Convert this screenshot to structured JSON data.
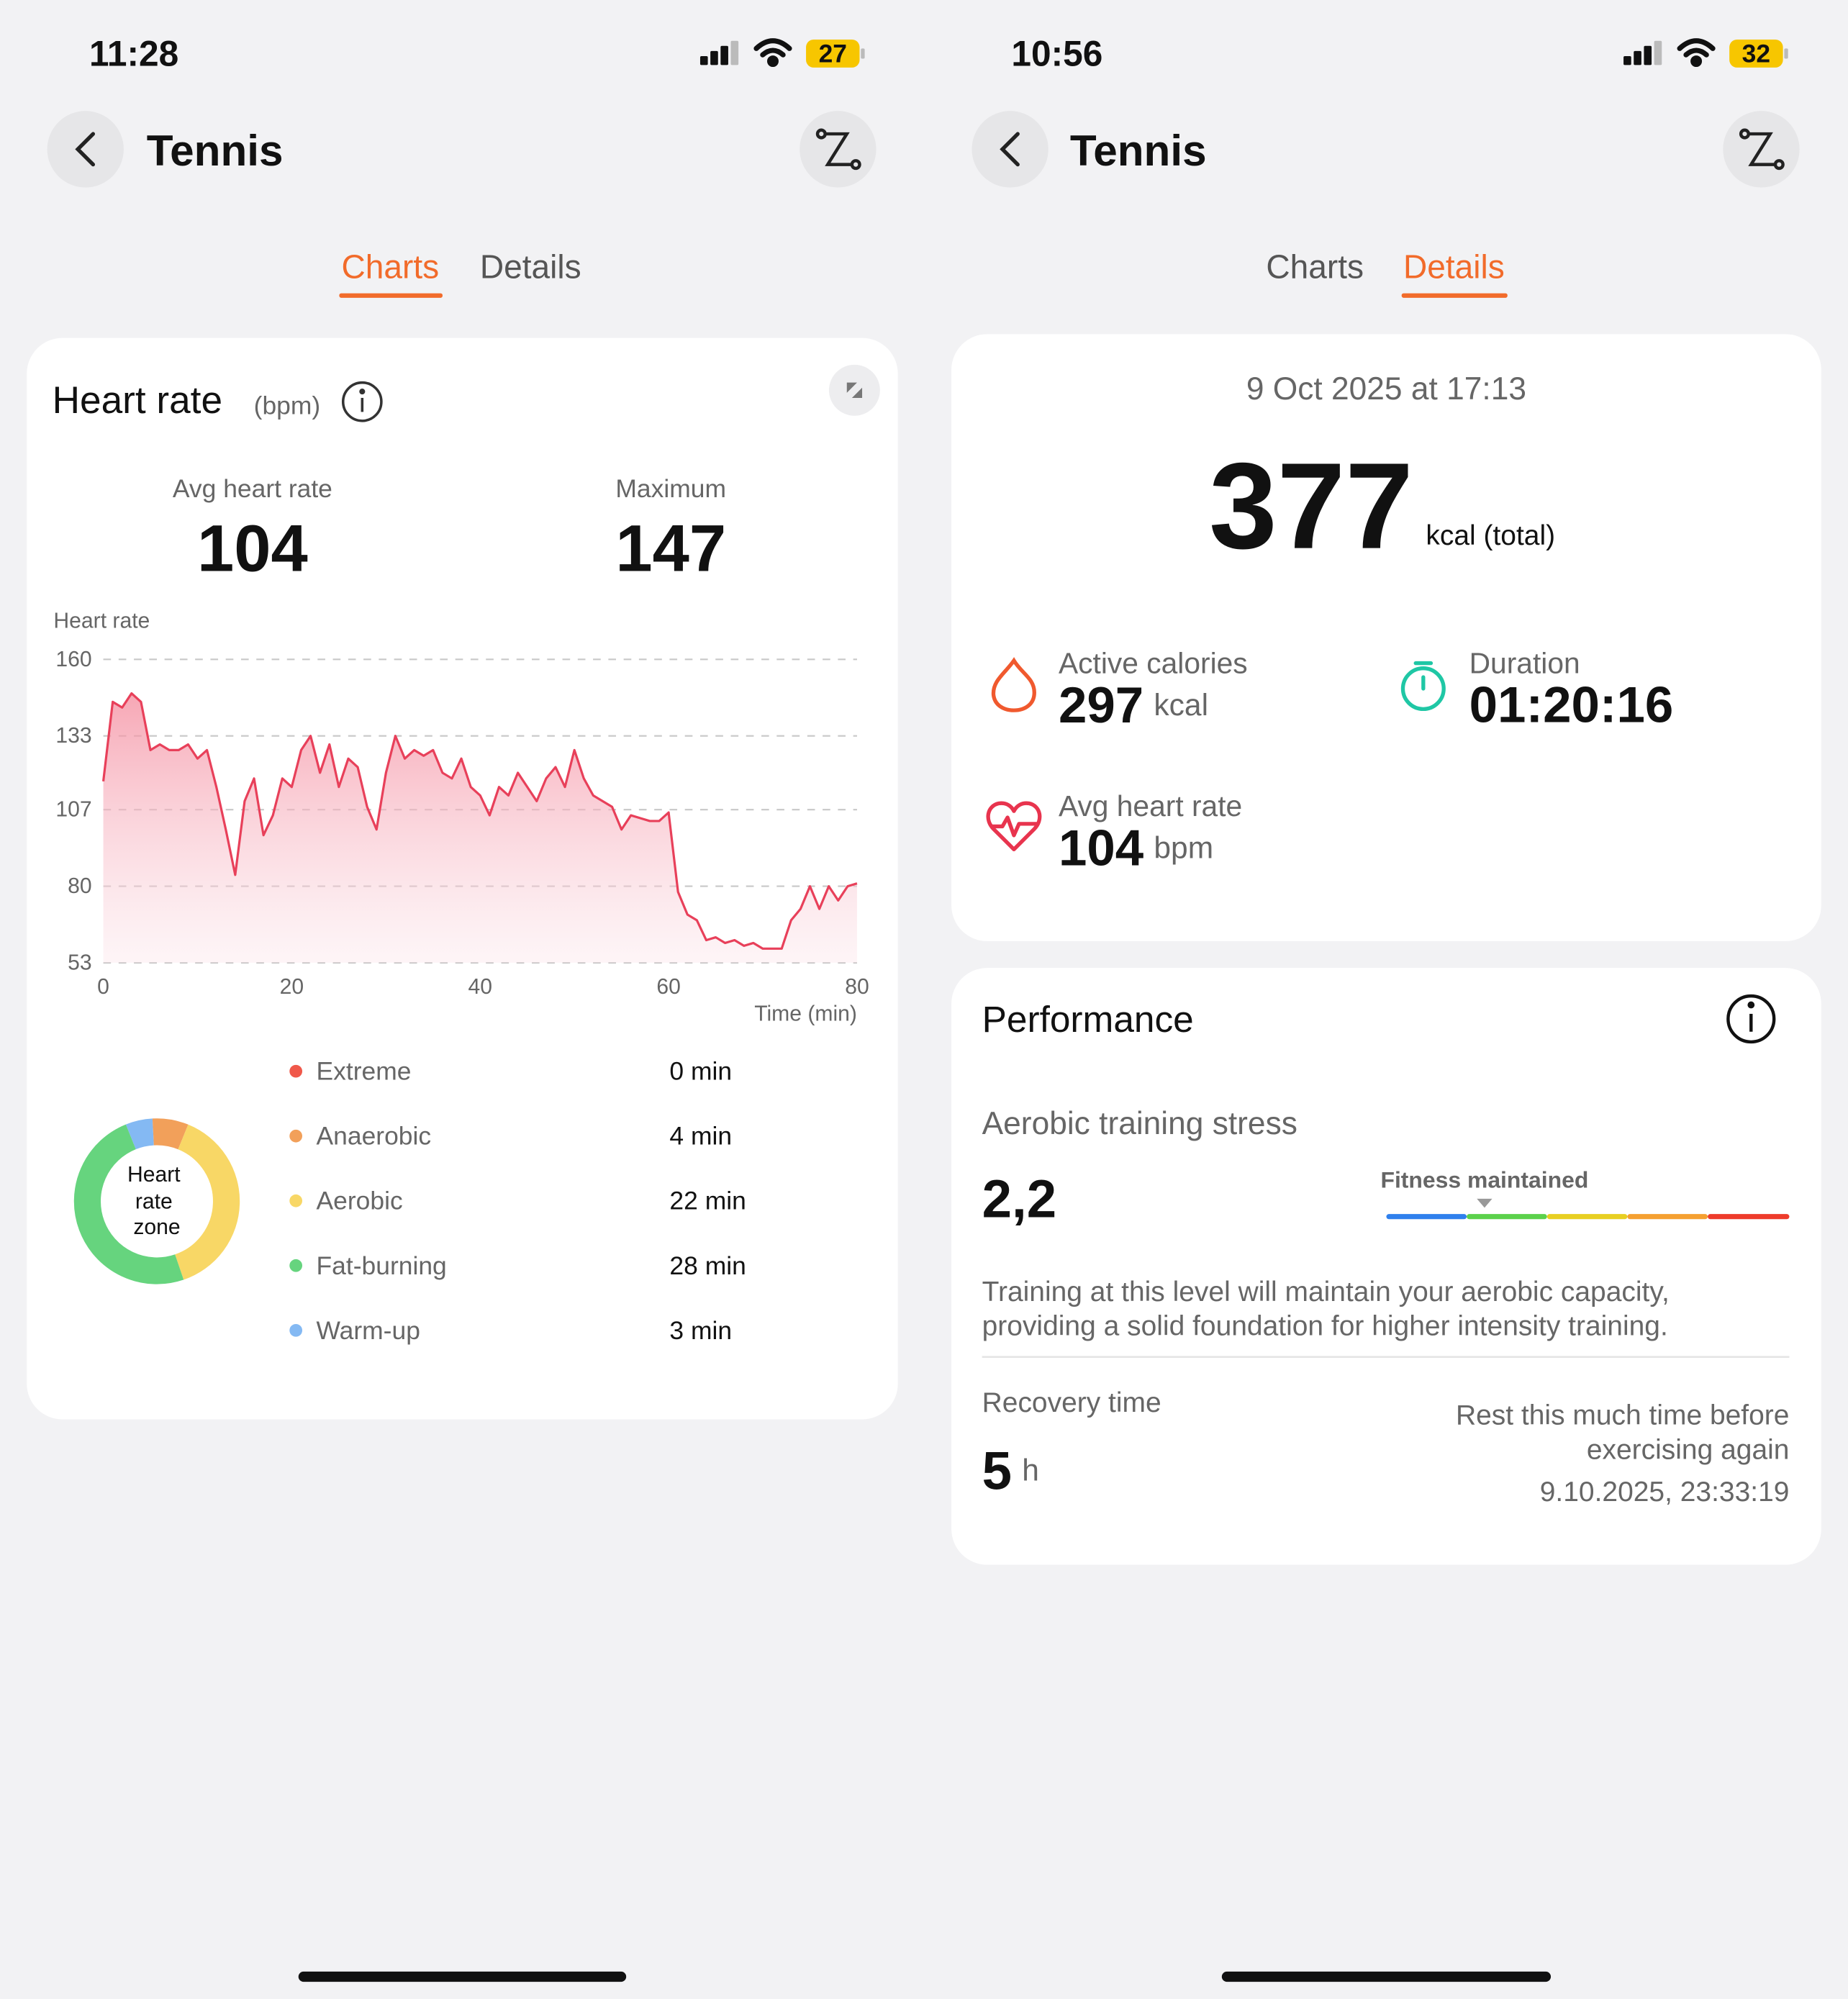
{
  "left": {
    "status_bar": {
      "time": "11:28",
      "battery": 27
    },
    "header": {
      "title": "Tennis"
    },
    "tabs": [
      "Charts",
      "Details"
    ],
    "active_tab": 0,
    "heart_rate": {
      "title": "Heart rate",
      "unit": "(bpm)",
      "avg_label": "Avg heart rate",
      "avg": 104,
      "max_label": "Maximum",
      "max": 147,
      "chart": {
        "type": "line",
        "y_label": "Heart rate",
        "x_label": "Time (min)",
        "x": [
          0,
          1,
          2,
          3,
          4,
          5,
          6,
          7,
          8,
          9,
          10,
          11,
          12,
          13,
          14,
          15,
          16,
          17,
          18,
          19,
          20,
          21,
          22,
          23,
          24,
          25,
          26,
          27,
          28,
          29,
          30,
          31,
          32,
          33,
          34,
          35,
          36,
          37,
          38,
          39,
          40,
          41,
          42,
          43,
          44,
          45,
          46,
          47,
          48,
          49,
          50,
          51,
          52,
          53,
          54,
          55,
          56,
          57,
          58,
          59,
          60,
          61,
          62,
          63,
          64,
          65,
          66,
          67,
          68,
          69,
          70,
          71,
          72,
          73,
          74,
          75,
          76,
          77,
          78,
          79,
          80
        ],
        "series": [
          {
            "color": "#e8405a",
            "values": [
              117,
              145,
              143,
              148,
              145,
              128,
              130,
              128,
              128,
              130,
              125,
              128,
              115,
              100,
              84,
              110,
              118,
              98,
              105,
              118,
              115,
              128,
              133,
              120,
              130,
              115,
              125,
              122,
              108,
              100,
              120,
              133,
              125,
              128,
              126,
              128,
              120,
              118,
              125,
              115,
              112,
              105,
              115,
              112,
              120,
              115,
              110,
              118,
              122,
              115,
              128,
              118,
              112,
              110,
              108,
              100,
              105,
              104,
              103,
              103,
              106,
              78,
              70,
              68,
              61,
              62,
              60,
              61,
              59,
              60,
              58,
              58,
              58,
              68,
              72,
              80,
              72,
              80,
              75,
              80,
              81
            ]
          }
        ],
        "xlim": [
          0,
          80
        ],
        "xticks": [
          0,
          20,
          40,
          60,
          80
        ],
        "ylim": [
          53,
          160
        ],
        "yticks": [
          53,
          80,
          107,
          133,
          160
        ],
        "grid": true
      },
      "zones": {
        "center_label": [
          "Heart",
          "rate",
          "zone"
        ],
        "items": [
          {
            "name": "Extreme",
            "minutes": 0,
            "minutes_label": "0 min",
            "color": "#f0584a"
          },
          {
            "name": "Anaerobic",
            "minutes": 4,
            "minutes_label": "4 min",
            "color": "#f2a05a"
          },
          {
            "name": "Aerobic",
            "minutes": 22,
            "minutes_label": "22 min",
            "color": "#f8d766"
          },
          {
            "name": "Fat-burning",
            "minutes": 28,
            "minutes_label": "28 min",
            "color": "#66d47e"
          },
          {
            "name": "Warm-up",
            "minutes": 3,
            "minutes_label": "3 min",
            "color": "#84b9f3"
          }
        ]
      }
    }
  },
  "right": {
    "status_bar": {
      "time": "10:56",
      "battery": 32
    },
    "header": {
      "title": "Tennis"
    },
    "tabs": [
      "Charts",
      "Details"
    ],
    "active_tab": 1,
    "summary": {
      "date": "9 Oct 2025 at 17:13",
      "total": 377,
      "total_unit": "kcal (total)",
      "active_label": "Active calories",
      "active": 297,
      "active_unit": "kcal",
      "duration_label": "Duration",
      "duration": "01:20:16",
      "avg_hr_label": "Avg heart rate",
      "avg_hr": 104,
      "avg_hr_unit": "bpm"
    },
    "performance": {
      "title": "Performance",
      "ats_label": "Aerobic training stress",
      "ats": "2,2",
      "status": "Fitness maintained",
      "description": [
        "Training at this level will maintain your aerobic capacity,",
        "providing a solid foundation for higher intensity training."
      ],
      "recovery_label": "Recovery time",
      "recovery": 5,
      "recovery_unit": "h",
      "rest_note": [
        "Rest this much time before",
        "exercising again"
      ],
      "rest_until": "9.10.2025, 23:33:19"
    }
  }
}
